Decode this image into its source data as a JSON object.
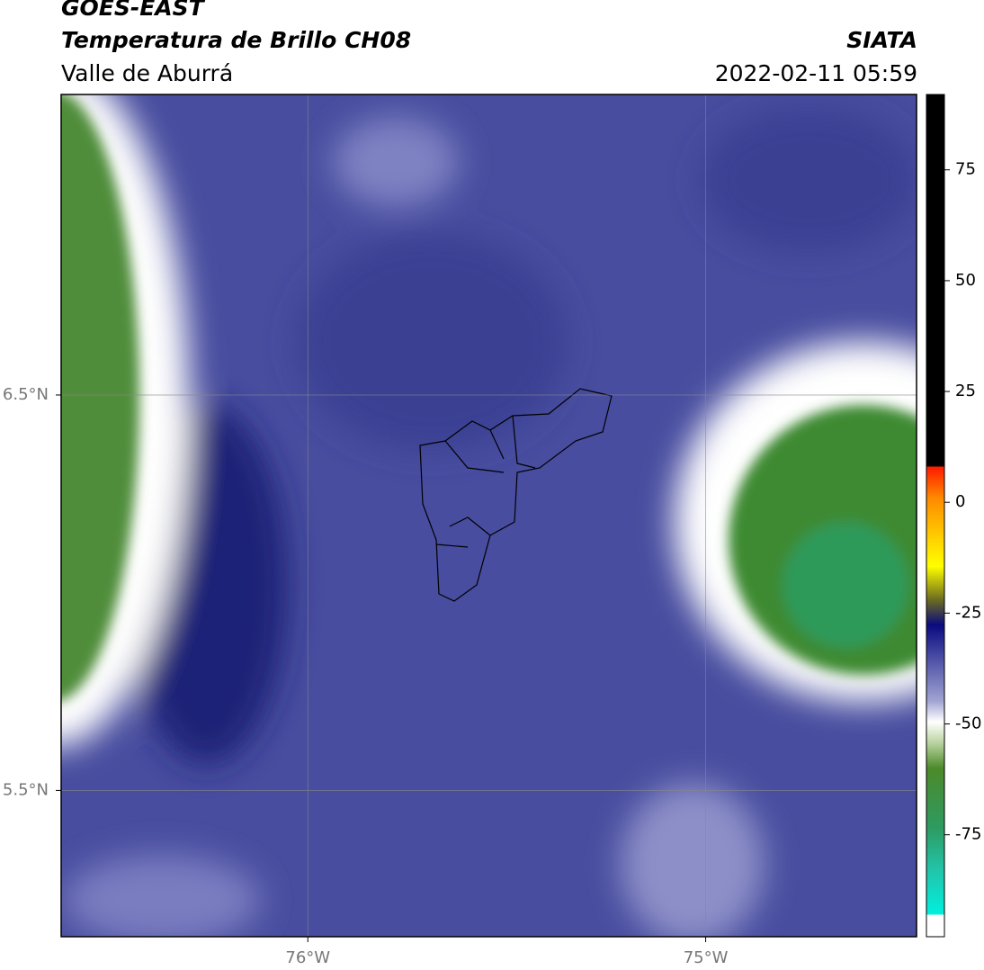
{
  "header": {
    "title": "GOES-EAST",
    "subtitle": "Temperatura de Brillo CH08",
    "region": "Valle de Aburrá",
    "source": "SIATA",
    "datetime": "2022-02-11 05:59"
  },
  "map": {
    "xlim": [
      -76.62,
      -74.47
    ],
    "ylim": [
      5.13,
      7.26
    ],
    "xticks": [
      {
        "value": -76,
        "label": "76°W"
      },
      {
        "value": -75,
        "label": "75°W"
      }
    ],
    "yticks": [
      {
        "value": 6.5,
        "label": "6.5°N"
      },
      {
        "value": 5.5,
        "label": "5.5°N"
      }
    ]
  },
  "colorbar": {
    "lim": [
      -98,
      92
    ],
    "ticks": [
      75,
      50,
      25,
      0,
      -25,
      -50,
      -75
    ]
  }
}
